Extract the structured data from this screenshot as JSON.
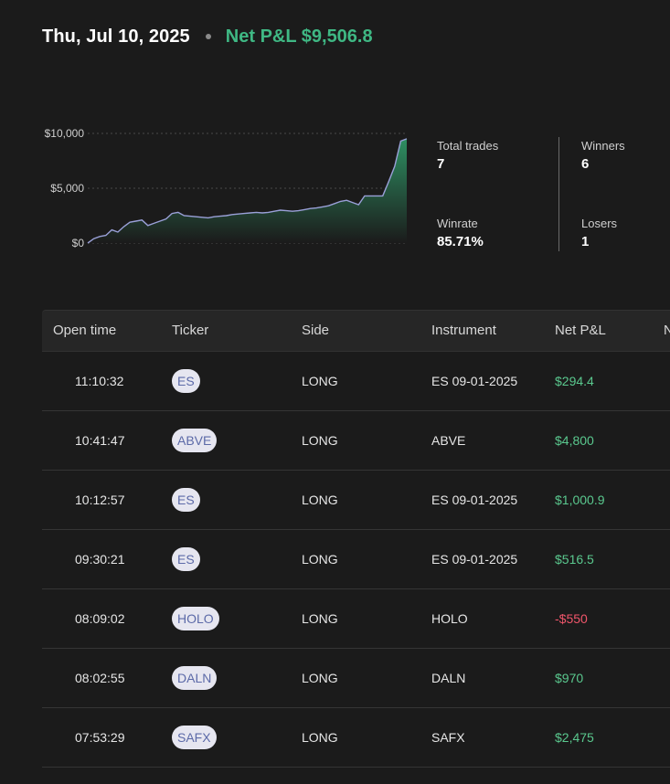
{
  "header": {
    "date": "Thu, Jul 10, 2025",
    "net_pnl": "Net P&L $9,506.8"
  },
  "chart_data": {
    "type": "area",
    "y_ticks": [
      "$10,000",
      "$5,000",
      "$0"
    ],
    "ylim": [
      0,
      10000
    ],
    "grid": true,
    "values": [
      0,
      400,
      600,
      700,
      1200,
      1000,
      1500,
      1900,
      2000,
      2100,
      1600,
      1800,
      2000,
      2200,
      2700,
      2800,
      2500,
      2450,
      2400,
      2350,
      2300,
      2400,
      2450,
      2500,
      2600,
      2650,
      2700,
      2750,
      2800,
      2750,
      2800,
      2900,
      3000,
      2950,
      2900,
      2950,
      3050,
      3150,
      3200,
      3300,
      3400,
      3600,
      3800,
      3900,
      3700,
      3500,
      4300,
      4300,
      4300,
      4300,
      5600,
      7000,
      9300,
      9506.8
    ],
    "line_color": "#9aa0d8",
    "fill_top_color": "#2e8f62",
    "fill_bottom_color": "#1b1b1b"
  },
  "stats": {
    "total_trades_label": "Total trades",
    "total_trades": "7",
    "winners_label": "Winners",
    "winners": "6",
    "winrate_label": "Winrate",
    "winrate": "85.71%",
    "losers_label": "Losers",
    "losers": "1"
  },
  "table": {
    "columns": [
      "Open time",
      "Ticker",
      "Side",
      "Instrument",
      "Net P&L",
      "N"
    ],
    "rows": [
      {
        "time": "11:10:32",
        "ticker": "ES",
        "side": "LONG",
        "instrument": "ES 09-01-2025",
        "pnl": "$294.4",
        "positive": true
      },
      {
        "time": "10:41:47",
        "ticker": "ABVE",
        "side": "LONG",
        "instrument": "ABVE",
        "pnl": "$4,800",
        "positive": true
      },
      {
        "time": "10:12:57",
        "ticker": "ES",
        "side": "LONG",
        "instrument": "ES 09-01-2025",
        "pnl": "$1,000.9",
        "positive": true
      },
      {
        "time": "09:30:21",
        "ticker": "ES",
        "side": "LONG",
        "instrument": "ES 09-01-2025",
        "pnl": "$516.5",
        "positive": true
      },
      {
        "time": "08:09:02",
        "ticker": "HOLO",
        "side": "LONG",
        "instrument": "HOLO",
        "pnl": "-$550",
        "positive": false
      },
      {
        "time": "08:02:55",
        "ticker": "DALN",
        "side": "LONG",
        "instrument": "DALN",
        "pnl": "$970",
        "positive": true
      },
      {
        "time": "07:53:29",
        "ticker": "SAFX",
        "side": "LONG",
        "instrument": "SAFX",
        "pnl": "$2,475",
        "positive": true
      }
    ]
  }
}
